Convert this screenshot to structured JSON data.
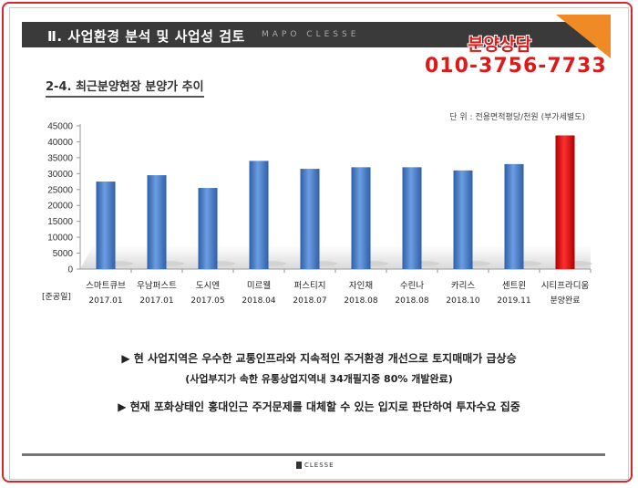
{
  "header": {
    "title": "Ⅱ. 사업환경 분석 및 사업성 검토",
    "subtitle": "MAPO CLESSE"
  },
  "contact": {
    "label": "분양상담",
    "phone": "010-3756-7733"
  },
  "section_title": "2-4. 최근분양현장 분양가 추이",
  "unit_note": "단 위 : 전용면적평당/천원 (부가세별도)",
  "chart_data": {
    "type": "bar",
    "categories": [
      "스마트큐브",
      "우남퍼스트",
      "도시엔",
      "미르웰",
      "퍼스티지",
      "자인채",
      "수린나",
      "카리스",
      "센트윈",
      "시티프라디움"
    ],
    "dates": [
      "2017.01",
      "2017.01",
      "2017.05",
      "2018.04",
      "2018.07",
      "2018.08",
      "2018.08",
      "2018.10",
      "2019.11",
      "분양완료"
    ],
    "row_label": "[준공일]",
    "values": [
      27500,
      29500,
      25500,
      34000,
      31500,
      32000,
      32000,
      31000,
      33000,
      42000
    ],
    "ylim": [
      0,
      45000
    ],
    "yticks": [
      0,
      5000,
      10000,
      15000,
      20000,
      25000,
      30000,
      35000,
      40000,
      45000
    ],
    "colors": {
      "default": "#4a7ec8",
      "highlight": "#e01010"
    },
    "highlight_index": 9,
    "grid": false
  },
  "bullets": [
    "▶ 현 사업지역은 우수한 교통인프라와 지속적인 주거환경 개선으로 토지매매가 급상승",
    "(사업부지가 속한 유통상업지역내 34개필지중  80% 개발완료)",
    "▶ 현재 포화상태인 홍대인근 주거문제를 대체할 수 있는 입지로 판단하여 투자수요 집중"
  ],
  "footer": {
    "logo_text": "CLESSE"
  }
}
